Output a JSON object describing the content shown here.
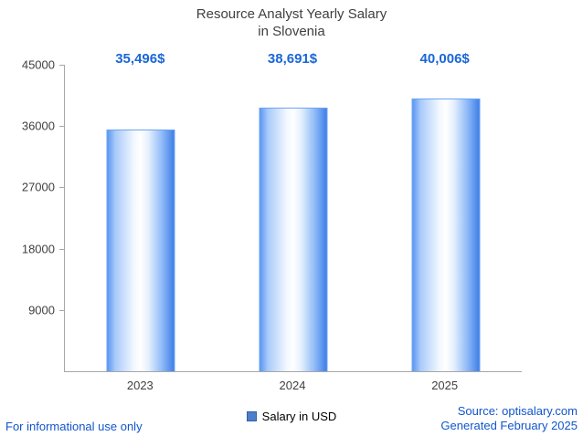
{
  "title_line1": "Resource Analyst Yearly Salary",
  "title_line2": "in Slovenia",
  "chart_data": {
    "type": "bar",
    "title": "Resource Analyst Yearly Salary in Slovenia",
    "categories": [
      "2023",
      "2024",
      "2025"
    ],
    "values": [
      35496,
      38691,
      40006
    ],
    "value_labels": [
      "35,496$",
      "38,691$",
      "40,006$"
    ],
    "ylim": [
      0,
      45000
    ],
    "yticks": [
      9000,
      18000,
      27000,
      36000,
      45000
    ],
    "xlabel": "",
    "ylabel": "",
    "grid": false,
    "legend_position": "bottom-center",
    "series_name": "Salary in USD",
    "bar_color_edge": "#3f7fe8",
    "bar_color_center": "#ffffff"
  },
  "legend": {
    "label": "Salary in USD",
    "swatch_color": "#4d7ec8"
  },
  "footer": {
    "left": "For informational use only",
    "right_line1": "Source: optisalary.com",
    "right_line2": "Generated February 2025"
  },
  "colors": {
    "value_label": "#1a66d6",
    "footer_link": "#1155cc",
    "axis": "#a6a6a6",
    "title_text": "#404040"
  }
}
